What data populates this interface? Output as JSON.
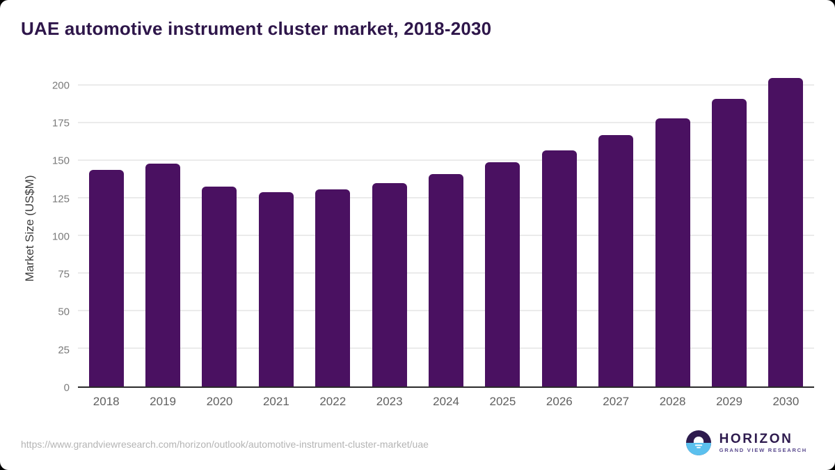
{
  "header": {
    "title": "UAE automotive instrument cluster market, 2018-2030"
  },
  "chart_data": {
    "type": "bar",
    "title": "UAE automotive instrument cluster market, 2018-2030",
    "categories": [
      "2018",
      "2019",
      "2020",
      "2021",
      "2022",
      "2023",
      "2024",
      "2025",
      "2026",
      "2027",
      "2028",
      "2029",
      "2030"
    ],
    "values": [
      144,
      148,
      133,
      129,
      131,
      135,
      141,
      149,
      157,
      167,
      178,
      191,
      205
    ],
    "xlabel": "",
    "ylabel": "Market Size (US$M)",
    "ylim": [
      0,
      211
    ],
    "yticks": [
      0,
      25,
      50,
      75,
      100,
      125,
      150,
      175,
      200
    ],
    "grid": "horizontal",
    "legend": "none",
    "bar_color": "#4a1161"
  },
  "footer": {
    "source_url": "https://www.grandviewresearch.com/horizon/outlook/automotive-instrument-cluster-market/uae",
    "logo": {
      "brand": "HORIZON",
      "sub_brand": "GRAND VIEW RESEARCH"
    }
  },
  "colors": {
    "title_text": "#2e164a",
    "bar": "#4a1161",
    "gridline": "#ebebeb",
    "axis_line": "#2b2b2b",
    "tick_text": "#7a7a7a",
    "x_tick_text": "#606060",
    "url_text": "#b4b4b4",
    "logo_dark": "#2e1b4e",
    "logo_blue": "#5bc0ee"
  }
}
